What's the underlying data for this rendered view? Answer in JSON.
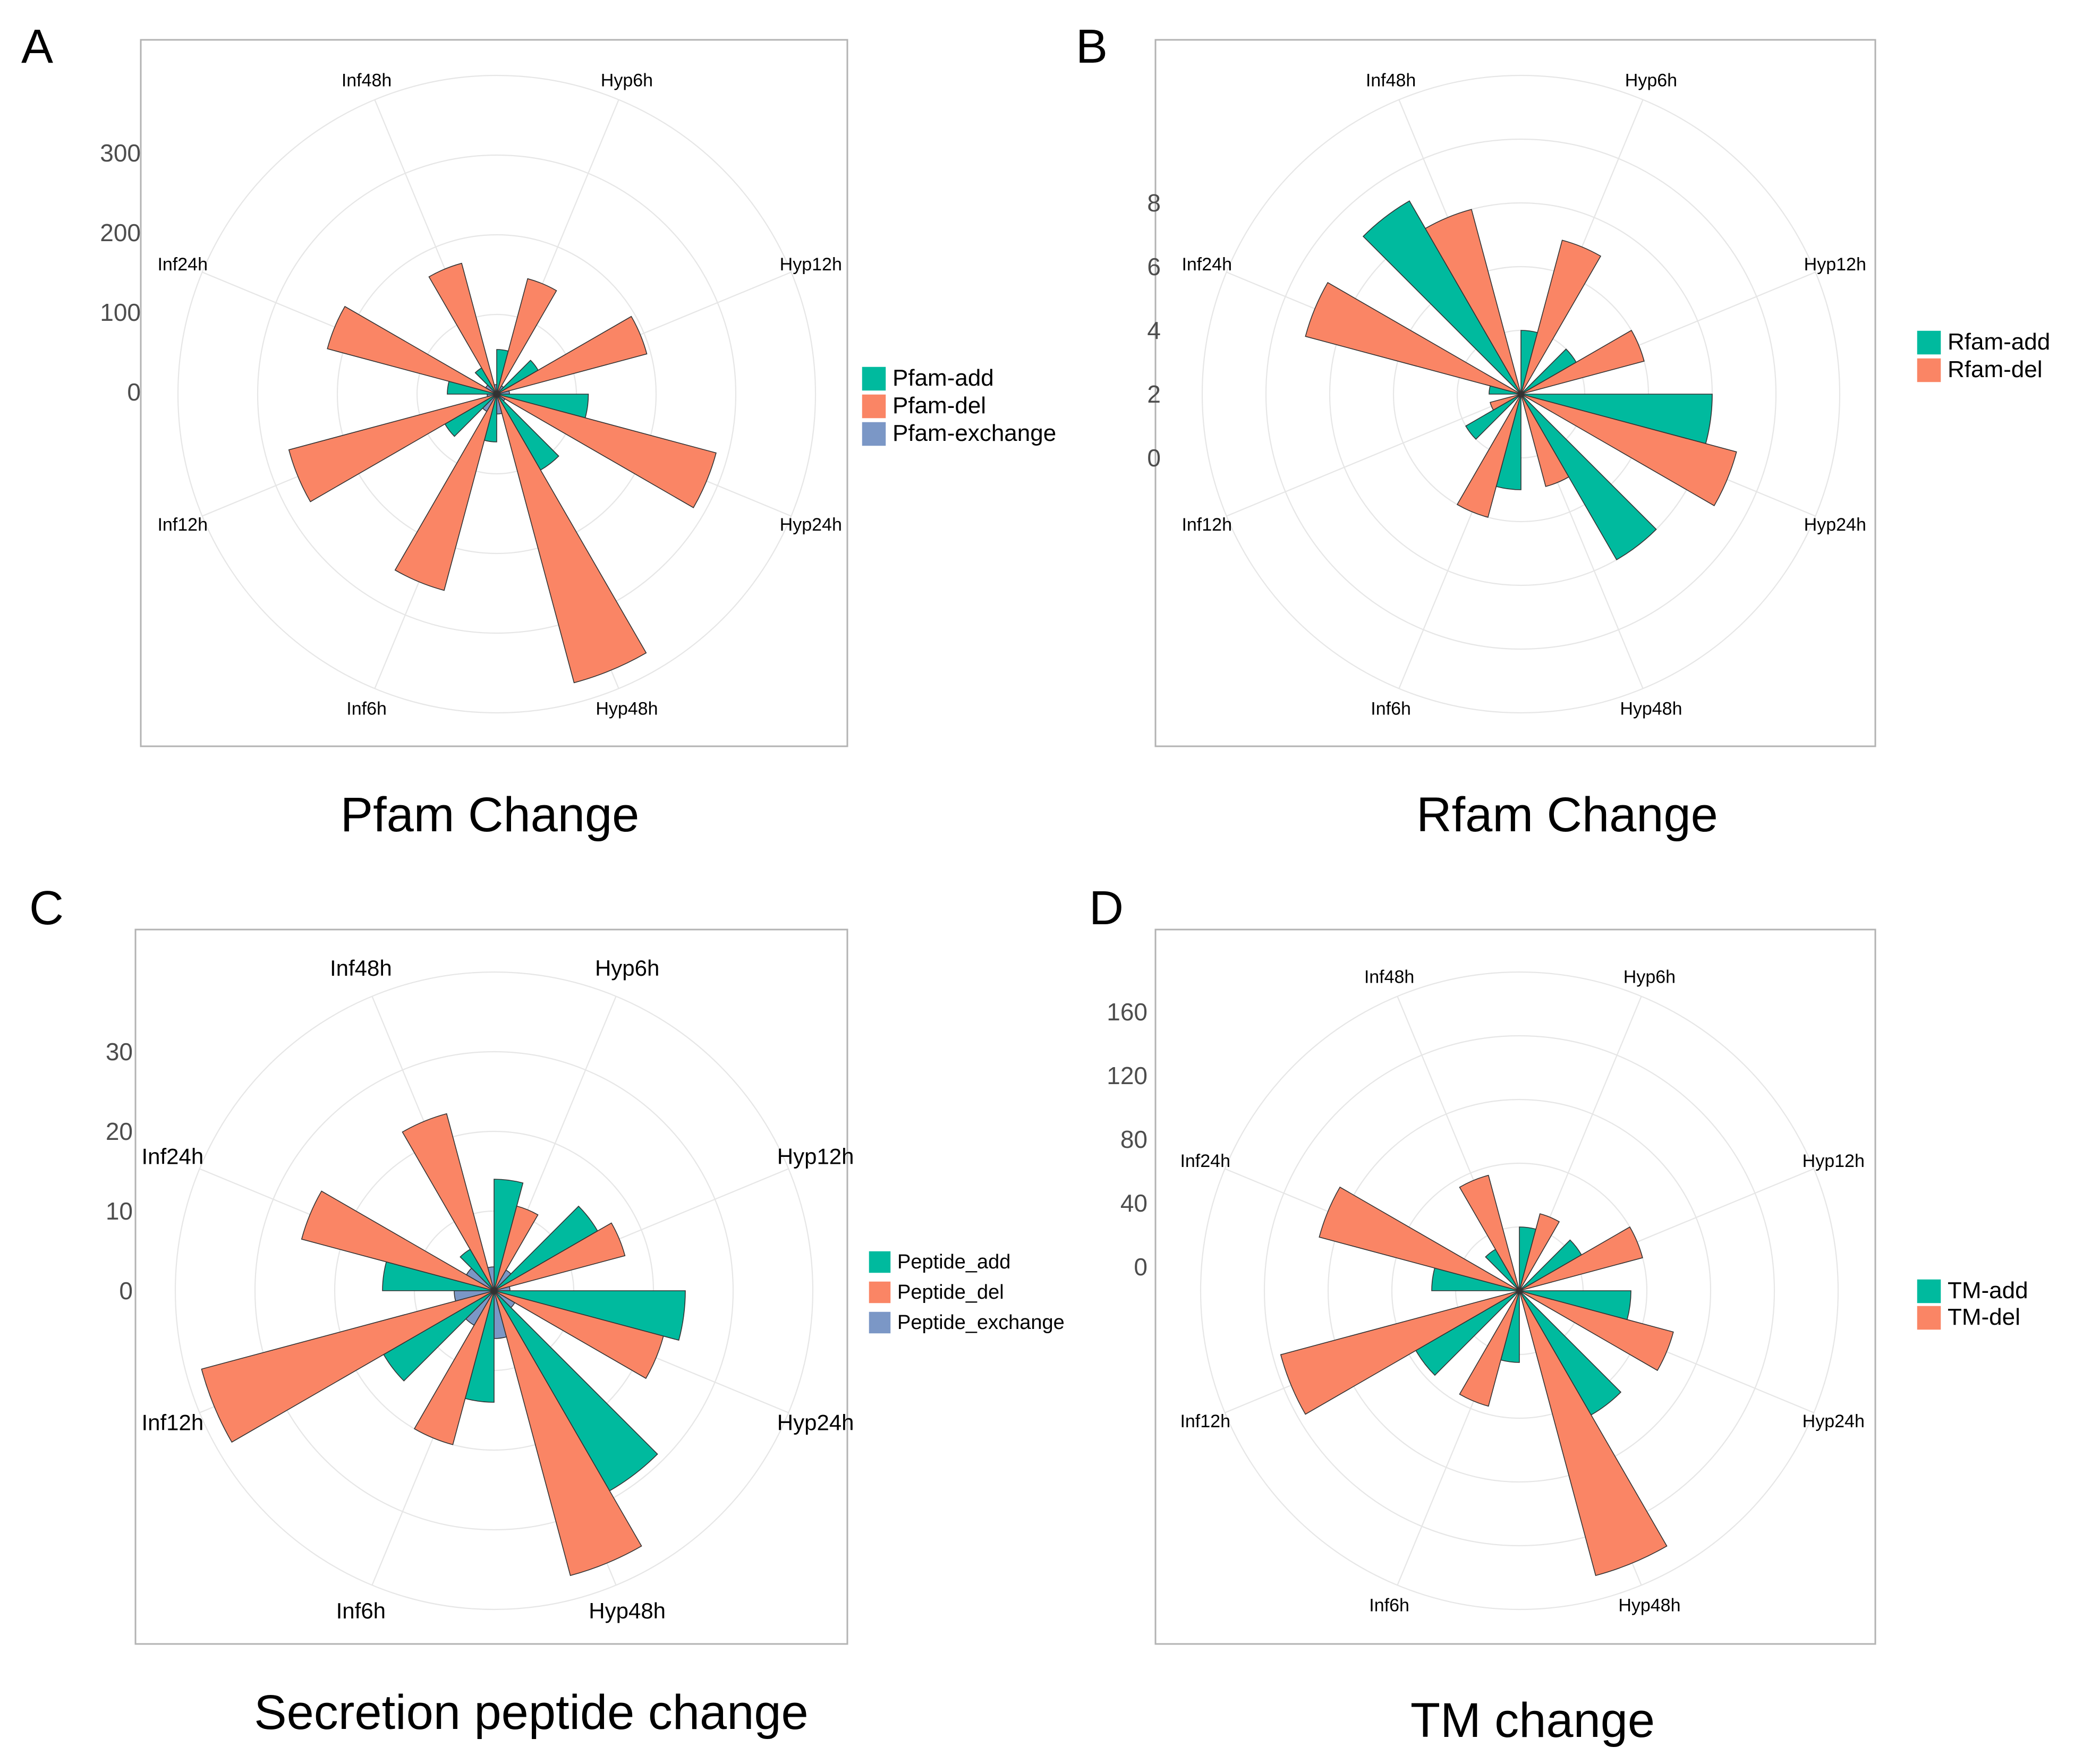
{
  "colors": {
    "add": "#00BA9E",
    "del": "#FA8565",
    "exchange": "#7B97C6"
  },
  "chart_data": [
    {
      "panel": "A",
      "type": "polar-bar",
      "title": "Pfam Change",
      "categories": [
        "Hyp6h",
        "Hyp12h",
        "Hyp24h",
        "Hyp48h",
        "Inf6h",
        "Inf12h",
        "Inf24h",
        "Inf48h"
      ],
      "yticks": [
        "0",
        "100",
        "200",
        "300"
      ],
      "rmax": 400,
      "series": [
        {
          "name": "Pfam-add",
          "key": "add",
          "values": [
            56,
            60,
            115,
            110,
            60,
            75,
            62,
            38
          ]
        },
        {
          "name": "Pfam-del",
          "key": "del",
          "values": [
            150,
            195,
            285,
            375,
            255,
            270,
            220,
            170
          ]
        },
        {
          "name": "Pfam-exchange",
          "key": "exchange",
          "values": [
            12,
            16,
            12,
            25,
            25,
            12,
            16,
            12
          ]
        }
      ]
    },
    {
      "panel": "B",
      "type": "polar-bar",
      "title": "Rfam Change",
      "categories": [
        "Hyp6h",
        "Hyp12h",
        "Hyp24h",
        "Hyp48h",
        "Inf6h",
        "Inf12h",
        "Inf24h",
        "Inf48h"
      ],
      "yticks": [
        "0",
        "2",
        "4",
        "6",
        "8"
      ],
      "rmax": 10,
      "series": [
        {
          "name": "Rfam-add",
          "key": "add",
          "values": [
            2,
            2,
            6,
            6,
            3,
            2,
            1,
            7
          ]
        },
        {
          "name": "Rfam-del",
          "key": "del",
          "values": [
            5,
            4,
            7,
            3,
            4,
            1,
            7,
            6
          ]
        }
      ]
    },
    {
      "panel": "C",
      "type": "polar-bar",
      "title": "Secretion peptide change",
      "categories": [
        "Hyp6h",
        "Hyp12h",
        "Hyp24h",
        "Hyp48h",
        "Inf6h",
        "Inf12h",
        "Inf24h",
        "Inf48h"
      ],
      "yticks": [
        "0",
        "10",
        "20",
        "30"
      ],
      "rmax": 40,
      "series": [
        {
          "name": "Peptide_add",
          "key": "add",
          "values": [
            14,
            15,
            24,
            29,
            14,
            16,
            14,
            6
          ]
        },
        {
          "name": "Peptide_del",
          "key": "del",
          "values": [
            11,
            17,
            22,
            37,
            20,
            38,
            25,
            23
          ]
        },
        {
          "name": "Peptide_exchange",
          "key": "exchange",
          "values": [
            3,
            2,
            3,
            6,
            5,
            5,
            4,
            3
          ]
        }
      ]
    },
    {
      "panel": "D",
      "type": "polar-bar",
      "title": "TM change",
      "categories": [
        "Hyp6h",
        "Hyp12h",
        "Hyp24h",
        "Hyp48h",
        "Inf6h",
        "Inf12h",
        "Inf24h",
        "Inf48h"
      ],
      "yticks": [
        "0",
        "40",
        "80",
        "120",
        "160"
      ],
      "rmax": 200,
      "series": [
        {
          "name": "TM-add",
          "key": "add",
          "values": [
            40,
            45,
            70,
            90,
            45,
            75,
            55,
            30
          ]
        },
        {
          "name": "TM-del",
          "key": "del",
          "values": [
            50,
            80,
            100,
            185,
            75,
            155,
            130,
            75
          ]
        }
      ]
    }
  ]
}
